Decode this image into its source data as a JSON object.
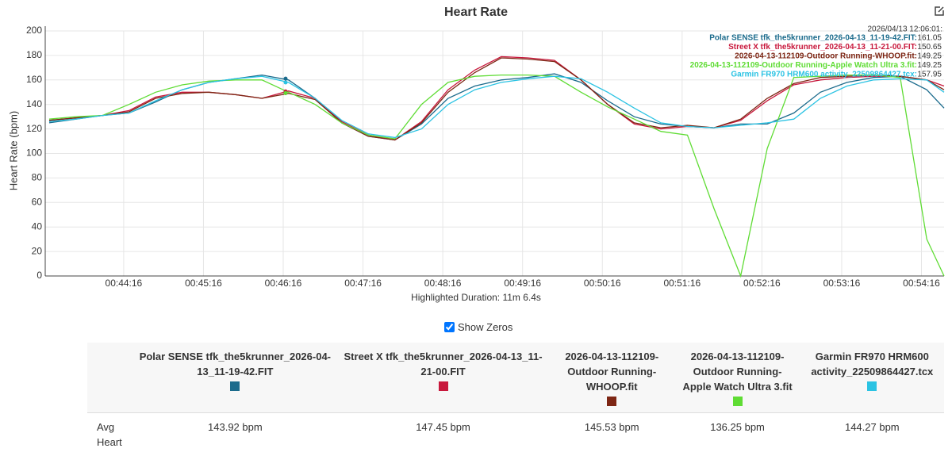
{
  "chart_data": {
    "type": "line",
    "title": "Heart Rate",
    "y_label": "Heart Rate (bpm)",
    "x_label": "Highlighted Duration: 11m 6.4s",
    "x": [
      2600,
      2620,
      2640,
      2660,
      2680,
      2700,
      2720,
      2740,
      2760,
      2780,
      2800,
      2820,
      2840,
      2860,
      2880,
      2900,
      2920,
      2940,
      2960,
      2980,
      3000,
      3020,
      3040,
      3060,
      3080,
      3100,
      3120,
      3140,
      3160,
      3180,
      3200,
      3220,
      3240,
      3260,
      3273
    ],
    "xlim": [
      2597,
      3273
    ],
    "xticks": [
      {
        "value": 2656,
        "label": "00:44:16"
      },
      {
        "value": 2716,
        "label": "00:45:16"
      },
      {
        "value": 2776,
        "label": "00:46:16"
      },
      {
        "value": 2836,
        "label": "00:47:16"
      },
      {
        "value": 2896,
        "label": "00:48:16"
      },
      {
        "value": 2956,
        "label": "00:49:16"
      },
      {
        "value": 3016,
        "label": "00:50:16"
      },
      {
        "value": 3076,
        "label": "00:51:16"
      },
      {
        "value": 3136,
        "label": "00:52:16"
      },
      {
        "value": 3196,
        "label": "00:53:16"
      },
      {
        "value": 3256,
        "label": "00:54:16"
      }
    ],
    "ylim": [
      0,
      200
    ],
    "yticks": [
      0,
      20,
      40,
      60,
      80,
      100,
      120,
      140,
      160,
      180,
      200
    ],
    "grid": true,
    "series": [
      {
        "name": "Polar SENSE tfk_the5krunner_2026-04-13_11-19-42.FIT",
        "color": "#1b6b8c",
        "values": [
          125,
          128,
          131,
          133,
          142,
          152,
          158,
          161,
          164,
          160,
          145,
          125,
          114,
          111,
          124,
          145,
          155,
          160,
          162,
          165,
          158,
          143,
          130,
          124,
          122,
          121,
          124,
          124,
          133,
          150,
          158,
          162,
          163,
          152,
          137
        ]
      },
      {
        "name": "Street X tfk_the5krunner_2026-04-13_11-21-00.FIT",
        "color": "#c8183c",
        "values": [
          127,
          129,
          131,
          135,
          146,
          150,
          150,
          148,
          145,
          151,
          145,
          126,
          115,
          111,
          126,
          152,
          168,
          179,
          178,
          176,
          160,
          140,
          124,
          120,
          122,
          121,
          127,
          143,
          156,
          160,
          162,
          163,
          163,
          160,
          155
        ]
      },
      {
        "name": "2026-04-13-112109-Outdoor Running-WHOOP.fit",
        "color": "#7d2614",
        "values": [
          127,
          129,
          131,
          134,
          145,
          149,
          150,
          148,
          145,
          149,
          144,
          125,
          114,
          111,
          125,
          150,
          166,
          178,
          177,
          175,
          160,
          140,
          125,
          121,
          123,
          121,
          128,
          145,
          157,
          162,
          163,
          164,
          163,
          160,
          152
        ]
      },
      {
        "name": "2026-04-13-112109-Outdoor Running-Apple Watch Ultra 3.fit",
        "color": "#5fdc34",
        "values": [
          128,
          130,
          131,
          140,
          150,
          156,
          159,
          160,
          160,
          150,
          140,
          125,
          115,
          112,
          140,
          158,
          163,
          164,
          164,
          163,
          150,
          138,
          128,
          118,
          115,
          55,
          0,
          104,
          162,
          163,
          164,
          164,
          162,
          30,
          0
        ]
      },
      {
        "name": "Garmin FR970 HRM600 activity_22509864427.tcx",
        "color": "#2bc3e3",
        "values": [
          126,
          128,
          131,
          133,
          143,
          152,
          158,
          161,
          163,
          158,
          145,
          127,
          116,
          113,
          120,
          140,
          152,
          158,
          161,
          163,
          161,
          150,
          137,
          125,
          122,
          121,
          123,
          125,
          128,
          145,
          155,
          160,
          161,
          160,
          150
        ]
      }
    ],
    "tooltip": {
      "time": "2026/04/13 12:06:01:",
      "rows": [
        {
          "label": "Polar SENSE tfk_the5krunner_2026-04-13_11-19-42.FIT:",
          "value": 161.05
        },
        {
          "label": "Street X tfk_the5krunner_2026-04-13_11-21-00.FIT:",
          "value": 150.65
        },
        {
          "label": "2026-04-13-112109-Outdoor Running-WHOOP.fit:",
          "value": 149.25
        },
        {
          "label": "2026-04-13-112109-Outdoor Running-Apple Watch Ultra 3.fit:",
          "value": 149.25
        },
        {
          "label": "Garmin FR970 HRM600 activity_22509864427.tcx:",
          "value": 157.95
        }
      ]
    }
  },
  "controls": {
    "show_zeros": {
      "label": "Show Zeros",
      "checked": true
    }
  },
  "table": {
    "headers": [
      "Polar SENSE tfk_the5krunner_2026-04-13_11-19-42.FIT",
      "Street X tfk_the5krunner_2026-04-13_11-21-00.FIT",
      "2026-04-13-112109-Outdoor Running-WHOOP.fit",
      "2026-04-13-112109-Outdoor Running-Apple Watch Ultra 3.fit",
      "Garmin FR970 HRM600 activity_22509864427.tcx"
    ],
    "row_label": "Avg Heart",
    "values": [
      "143.92 bpm",
      "147.45 bpm",
      "145.53 bpm",
      "136.25 bpm",
      "144.27 bpm"
    ]
  }
}
